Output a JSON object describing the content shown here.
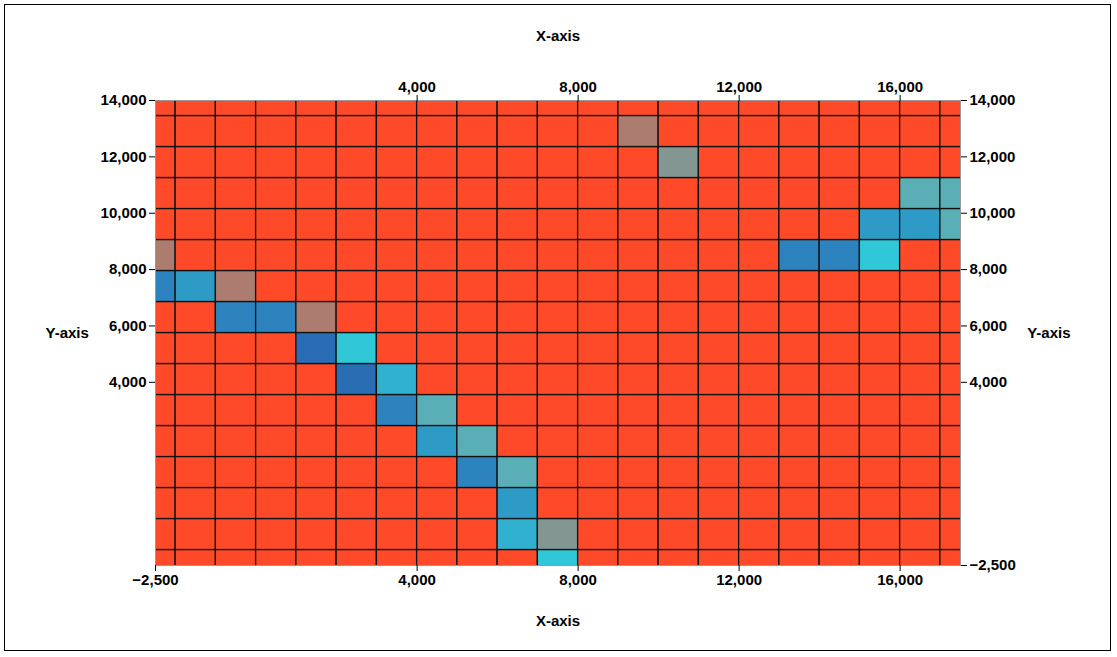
{
  "chart_data": {
    "type": "surface",
    "x_label": "X-axis",
    "y_label": "Y-axis",
    "y2_label": "Y-axis",
    "xlim": [
      -2500,
      17500
    ],
    "xticks": [
      -2500,
      4000,
      8000,
      12000,
      16000
    ],
    "ylim": [
      -2500,
      14000
    ],
    "yticks": [
      4000,
      6000,
      8000,
      10000,
      12000,
      14000
    ],
    "y2lim": [
      -2500,
      14000
    ],
    "y2ticks": [
      -2500,
      4000,
      6000,
      8000,
      10000,
      12000,
      14000
    ],
    "x": [
      -2500,
      -1500,
      -500,
      500,
      1500,
      2500,
      3500,
      4500,
      5500,
      6500,
      7500,
      8500,
      9500,
      10500,
      11500,
      12500,
      13500,
      14500,
      15500,
      16500,
      17500
    ],
    "y": [
      -2500,
      -1400,
      -300,
      800,
      1900,
      3000,
      4100,
      5200,
      6300,
      7400,
      8500,
      9600,
      10700,
      11800,
      12900,
      14000
    ],
    "zlim": [
      0,
      1
    ],
    "z": [
      [
        0.9,
        0.9,
        0.9,
        0.9,
        0.9,
        0.9,
        0.9,
        0.9,
        0.9,
        0.9,
        0.35,
        0.6,
        0.9,
        0.9,
        0.9,
        0.9,
        0.9,
        0.9,
        0.9,
        0.9,
        0.9
      ],
      [
        0.9,
        0.9,
        0.9,
        0.9,
        0.9,
        0.9,
        0.9,
        0.9,
        0.9,
        0.3,
        0.45,
        0.9,
        0.9,
        0.9,
        0.9,
        0.9,
        0.9,
        0.9,
        0.9,
        0.9,
        0.9
      ],
      [
        0.9,
        0.9,
        0.9,
        0.9,
        0.9,
        0.9,
        0.9,
        0.9,
        0.6,
        0.25,
        0.7,
        0.9,
        0.9,
        0.9,
        0.9,
        0.9,
        0.9,
        0.9,
        0.9,
        0.9,
        0.9
      ],
      [
        0.9,
        0.9,
        0.9,
        0.9,
        0.9,
        0.9,
        0.9,
        0.9,
        0.2,
        0.4,
        0.9,
        0.9,
        0.9,
        0.9,
        0.9,
        0.9,
        0.9,
        0.9,
        0.9,
        0.9,
        0.9
      ],
      [
        0.9,
        0.9,
        0.9,
        0.9,
        0.9,
        0.9,
        0.9,
        0.25,
        0.4,
        0.9,
        0.9,
        0.9,
        0.9,
        0.9,
        0.9,
        0.9,
        0.9,
        0.9,
        0.9,
        0.9,
        0.9
      ],
      [
        0.9,
        0.9,
        0.9,
        0.9,
        0.9,
        0.9,
        0.2,
        0.4,
        0.9,
        0.9,
        0.9,
        0.9,
        0.9,
        0.9,
        0.9,
        0.9,
        0.9,
        0.9,
        0.9,
        0.9,
        0.9
      ],
      [
        0.9,
        0.9,
        0.9,
        0.9,
        0.9,
        0.15,
        0.3,
        0.8,
        0.9,
        0.9,
        0.9,
        0.9,
        0.9,
        0.9,
        0.9,
        0.9,
        0.9,
        0.9,
        0.9,
        0.9,
        0.9
      ],
      [
        0.9,
        0.9,
        0.9,
        0.8,
        0.15,
        0.35,
        0.9,
        0.9,
        0.9,
        0.9,
        0.9,
        0.9,
        0.9,
        0.9,
        0.9,
        0.9,
        0.9,
        0.9,
        0.9,
        0.9,
        0.9
      ],
      [
        0.9,
        0.8,
        0.2,
        0.2,
        0.5,
        0.9,
        0.9,
        0.9,
        0.9,
        0.9,
        0.9,
        0.9,
        0.9,
        0.9,
        0.9,
        0.9,
        0.9,
        0.9,
        0.9,
        0.9,
        0.9
      ],
      [
        0.2,
        0.25,
        0.5,
        0.9,
        0.9,
        0.9,
        0.9,
        0.9,
        0.9,
        0.9,
        0.9,
        0.9,
        0.9,
        0.9,
        0.9,
        0.9,
        0.6,
        0.9,
        0.9,
        0.9,
        0.9
      ],
      [
        0.5,
        0.9,
        0.9,
        0.9,
        0.9,
        0.9,
        0.9,
        0.9,
        0.9,
        0.9,
        0.9,
        0.9,
        0.9,
        0.9,
        0.9,
        0.9,
        0.2,
        0.2,
        0.35,
        0.9,
        0.9
      ],
      [
        0.9,
        0.9,
        0.9,
        0.9,
        0.9,
        0.9,
        0.9,
        0.9,
        0.9,
        0.9,
        0.9,
        0.9,
        0.9,
        0.9,
        0.9,
        0.9,
        0.9,
        0.7,
        0.25,
        0.25,
        0.4
      ],
      [
        0.9,
        0.9,
        0.9,
        0.9,
        0.9,
        0.9,
        0.9,
        0.9,
        0.9,
        0.9,
        0.9,
        0.9,
        0.9,
        0.9,
        0.9,
        0.9,
        0.9,
        0.9,
        0.9,
        0.4,
        0.4
      ],
      [
        0.9,
        0.9,
        0.9,
        0.9,
        0.9,
        0.9,
        0.9,
        0.9,
        0.9,
        0.9,
        0.9,
        0.9,
        0.9,
        0.45,
        0.9,
        0.9,
        0.9,
        0.9,
        0.9,
        0.9,
        0.9
      ],
      [
        0.9,
        0.9,
        0.9,
        0.9,
        0.9,
        0.9,
        0.9,
        0.9,
        0.9,
        0.9,
        0.9,
        0.9,
        0.5,
        0.9,
        0.9,
        0.9,
        0.9,
        0.9,
        0.9,
        0.9,
        0.9
      ],
      [
        0.9,
        0.9,
        0.9,
        0.9,
        0.9,
        0.9,
        0.9,
        0.9,
        0.9,
        0.9,
        0.9,
        0.9,
        0.9,
        0.9,
        0.9,
        0.9,
        0.9,
        0.9,
        0.9,
        0.9,
        0.9
      ]
    ]
  }
}
